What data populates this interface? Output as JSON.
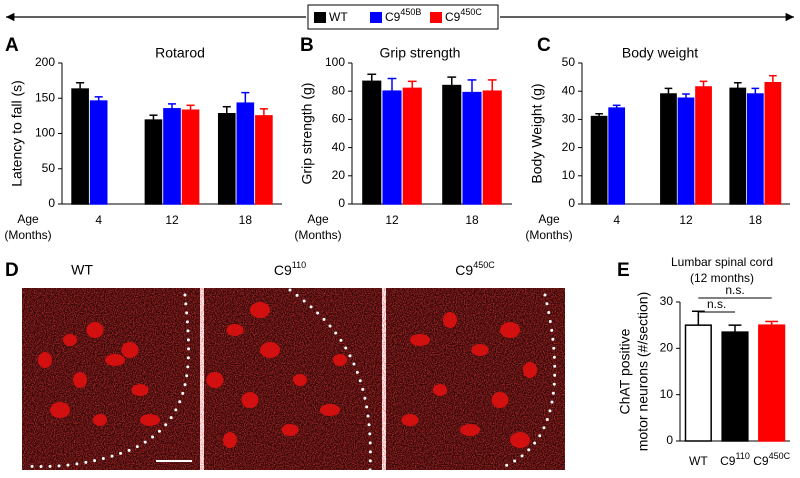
{
  "legend": [
    {
      "name": "WT",
      "color": "#000000"
    },
    {
      "name": "C9450B",
      "color": "#0000ff"
    },
    {
      "name": "C9450C",
      "color": "#ff0000"
    }
  ],
  "chart_data": [
    {
      "type": "bar",
      "panel_label": "A",
      "title": "Rotarod",
      "ylabel": "Latency to fall (s)",
      "xlabel": [
        "Age",
        "(Months)"
      ],
      "categories": [
        "4",
        "12",
        "18"
      ],
      "ylim": [
        0,
        200
      ],
      "yticks": [
        0,
        50,
        100,
        150,
        200
      ],
      "series": [
        {
          "values": [
            163,
            119,
            128
          ],
          "errors": [
            9,
            7,
            10
          ]
        },
        {
          "values": [
            146,
            135,
            143
          ],
          "errors": [
            6,
            7,
            15
          ]
        },
        {
          "values": [
            null,
            133,
            125
          ],
          "errors": [
            null,
            7,
            10
          ]
        }
      ]
    },
    {
      "type": "bar",
      "panel_label": "B",
      "title": "Grip strength",
      "ylabel": "Grip strength (g)",
      "xlabel": [
        "Age",
        "(Months)"
      ],
      "categories": [
        "12",
        "18"
      ],
      "ylim": [
        0,
        100
      ],
      "yticks": [
        0,
        20,
        40,
        60,
        80,
        100
      ],
      "series": [
        {
          "values": [
            87,
            84
          ],
          "errors": [
            5,
            6
          ]
        },
        {
          "values": [
            80,
            79
          ],
          "errors": [
            9,
            9
          ]
        },
        {
          "values": [
            82,
            80
          ],
          "errors": [
            5,
            8
          ]
        }
      ]
    },
    {
      "type": "bar",
      "panel_label": "C",
      "title": "Body weight",
      "ylabel": "Body Weight (g)",
      "xlabel": [
        "Age",
        "(Months)"
      ],
      "categories": [
        "4",
        "12",
        "18"
      ],
      "ylim": [
        0,
        50
      ],
      "yticks": [
        0,
        10,
        20,
        30,
        40,
        50
      ],
      "series": [
        {
          "values": [
            31,
            39,
            41
          ],
          "errors": [
            1,
            2,
            2
          ]
        },
        {
          "values": [
            34,
            37.5,
            39
          ],
          "errors": [
            1,
            1.5,
            2
          ]
        },
        {
          "values": [
            null,
            41.5,
            43
          ],
          "errors": [
            null,
            2,
            2.5
          ]
        }
      ]
    },
    {
      "type": "bar",
      "panel_label": "E",
      "title": [
        "Lumbar spinal cord",
        "(12 months)"
      ],
      "ylabel": [
        "ChAT positive",
        "motor neurons (#/section)"
      ],
      "categories": [
        "WT",
        "C9110",
        "C9450C"
      ],
      "label_colors": [
        "#000000",
        "#000000",
        "#ff0000"
      ],
      "ylim": [
        0,
        30
      ],
      "yticks": [
        0,
        10,
        20,
        30
      ],
      "annotations": [
        "n.s.",
        "n.s."
      ],
      "series": [
        {
          "values": [
            25,
            23.5,
            25
          ],
          "errors": [
            3,
            1.5,
            0.8
          ],
          "colors": [
            "#ffffff",
            "#000000",
            "#ff0000"
          ]
        }
      ]
    }
  ],
  "micrograph": {
    "panel_label": "D",
    "labels": [
      "WT",
      "C9110",
      "C9450C"
    ],
    "label_colors": [
      "#000000",
      "#000000",
      "#ff0000"
    ]
  }
}
